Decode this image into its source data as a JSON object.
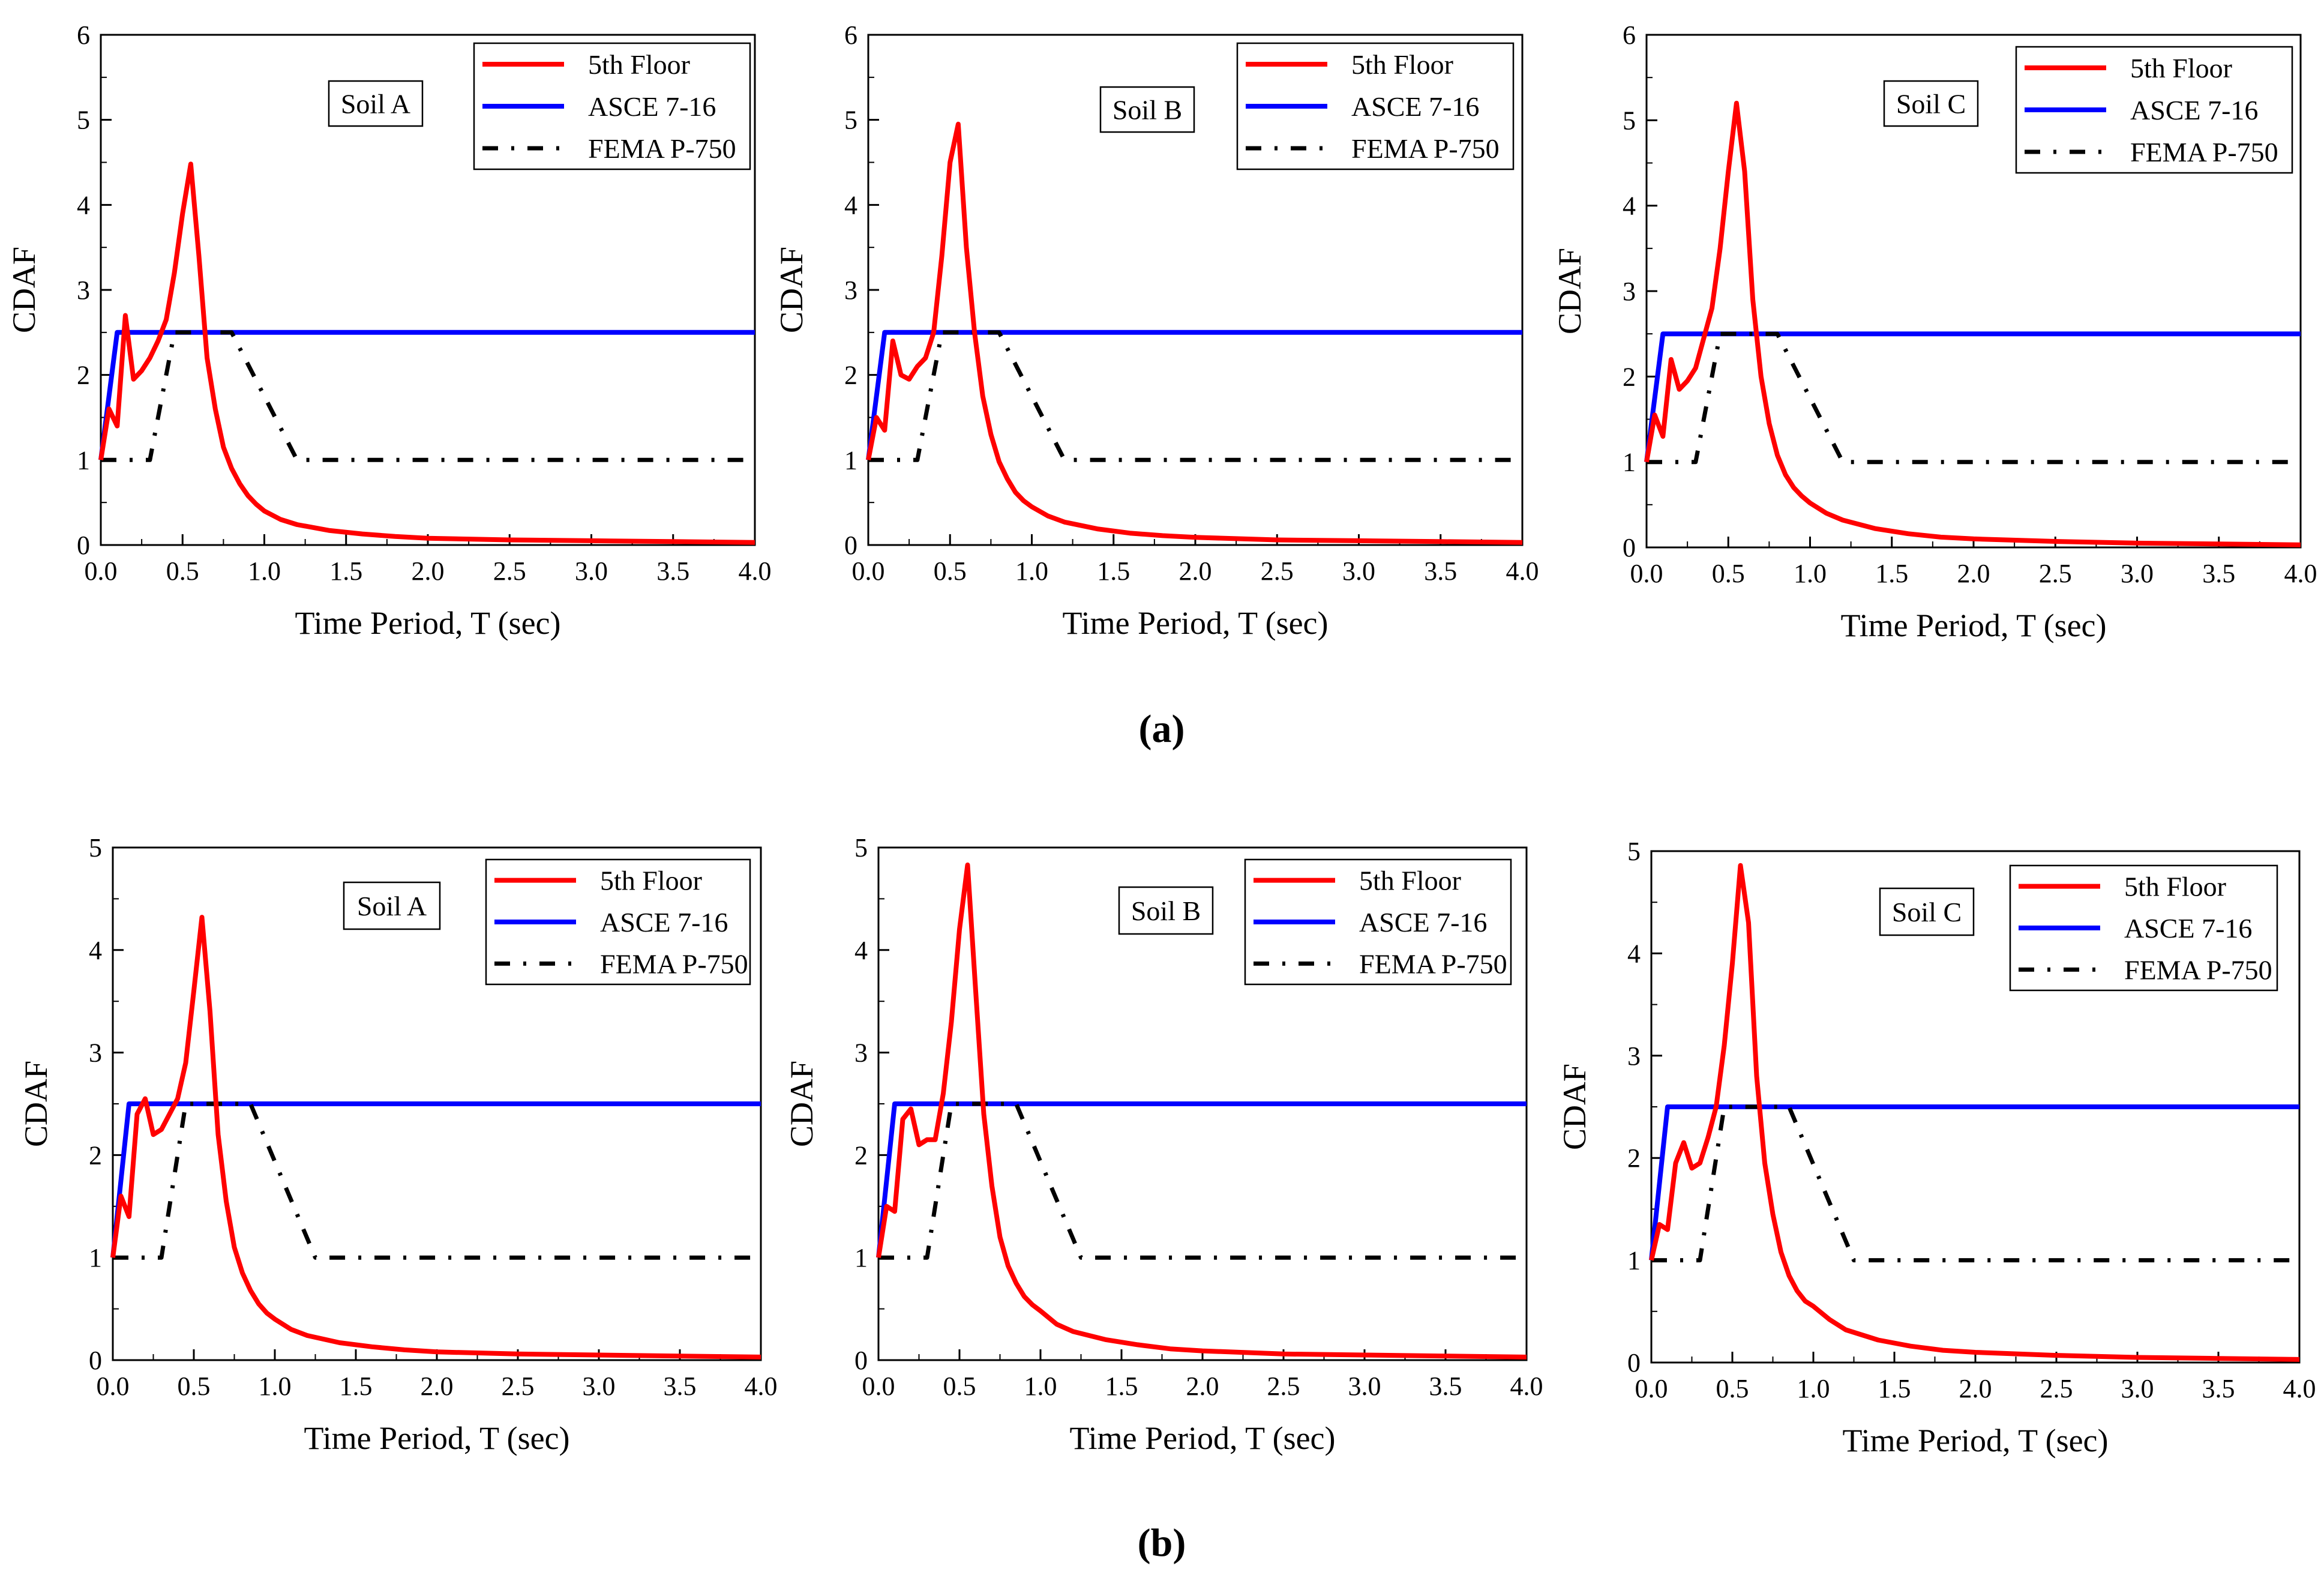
{
  "figure": {
    "panel_labels": [
      "(a)",
      "(b)"
    ],
    "legend": {
      "floor": "5th Floor",
      "asce": "ASCE 7-16",
      "fema": "FEMA P-750"
    },
    "colors": {
      "floor": "#ff0000",
      "asce": "#0000ff",
      "fema": "#000000"
    }
  },
  "chart_data": [
    {
      "type": "line",
      "row": "(a)",
      "annotation": "Soil A",
      "xlabel": "Time Period, T (sec)",
      "ylabel": "CDAF",
      "xlim": [
        0,
        4
      ],
      "ylim": [
        0,
        6
      ],
      "xticks": [
        "0.0",
        "0.5",
        "1.0",
        "1.5",
        "2.0",
        "2.5",
        "3.0",
        "3.5",
        "4.0"
      ],
      "yticks": [
        "0",
        "1",
        "2",
        "3",
        "4",
        "5",
        "6"
      ],
      "series": [
        {
          "name": "5th Floor",
          "x": [
            0,
            0.05,
            0.1,
            0.15,
            0.2,
            0.25,
            0.3,
            0.35,
            0.4,
            0.45,
            0.5,
            0.55,
            0.6,
            0.65,
            0.7,
            0.75,
            0.8,
            0.85,
            0.9,
            0.95,
            1.0,
            1.1,
            1.2,
            1.4,
            1.6,
            1.8,
            2.0,
            2.5,
            3.0,
            3.5,
            4.0
          ],
          "y": [
            1.0,
            1.6,
            1.4,
            2.7,
            1.95,
            2.05,
            2.2,
            2.4,
            2.65,
            3.2,
            3.9,
            4.48,
            3.4,
            2.2,
            1.6,
            1.15,
            0.9,
            0.72,
            0.58,
            0.48,
            0.4,
            0.3,
            0.24,
            0.17,
            0.13,
            0.1,
            0.08,
            0.06,
            0.05,
            0.04,
            0.03
          ]
        },
        {
          "name": "ASCE 7-16",
          "x": [
            0,
            0.1,
            4.0
          ],
          "y": [
            1,
            2.5,
            2.5
          ]
        },
        {
          "name": "FEMA P-750",
          "x": [
            0,
            0.3,
            0.45,
            0.8,
            1.2,
            4.0
          ],
          "y": [
            1,
            1,
            2.5,
            2.5,
            1,
            1
          ]
        }
      ]
    },
    {
      "type": "line",
      "row": "(a)",
      "annotation": "Soil B",
      "xlabel": "Time Period, T (sec)",
      "ylabel": "CDAF",
      "xlim": [
        0,
        4
      ],
      "ylim": [
        0,
        6
      ],
      "xticks": [
        "0.0",
        "0.5",
        "1.0",
        "1.5",
        "2.0",
        "2.5",
        "3.0",
        "3.5",
        "4.0"
      ],
      "yticks": [
        "0",
        "1",
        "2",
        "3",
        "4",
        "5",
        "6"
      ],
      "series": [
        {
          "name": "5th Floor",
          "x": [
            0,
            0.05,
            0.1,
            0.15,
            0.2,
            0.25,
            0.3,
            0.35,
            0.4,
            0.45,
            0.5,
            0.55,
            0.6,
            0.65,
            0.7,
            0.75,
            0.8,
            0.85,
            0.9,
            0.95,
            1.0,
            1.1,
            1.2,
            1.4,
            1.6,
            1.8,
            2.0,
            2.5,
            3.0,
            3.5,
            4.0
          ],
          "y": [
            1.0,
            1.5,
            1.35,
            2.4,
            2.0,
            1.95,
            2.1,
            2.2,
            2.5,
            3.4,
            4.5,
            4.95,
            3.5,
            2.5,
            1.75,
            1.3,
            0.98,
            0.78,
            0.62,
            0.52,
            0.45,
            0.34,
            0.27,
            0.19,
            0.14,
            0.11,
            0.09,
            0.06,
            0.05,
            0.04,
            0.03
          ]
        },
        {
          "name": "ASCE 7-16",
          "x": [
            0,
            0.1,
            4.0
          ],
          "y": [
            1,
            2.5,
            2.5
          ]
        },
        {
          "name": "FEMA P-750",
          "x": [
            0,
            0.3,
            0.45,
            0.8,
            1.2,
            4.0
          ],
          "y": [
            1,
            1,
            2.5,
            2.5,
            1,
            1
          ]
        }
      ]
    },
    {
      "type": "line",
      "row": "(a)",
      "annotation": "Soil C",
      "xlabel": "Time Period, T (sec)",
      "ylabel": "CDAF",
      "xlim": [
        0,
        4
      ],
      "ylim": [
        0,
        6
      ],
      "xticks": [
        "0.0",
        "0.5",
        "1.0",
        "1.5",
        "2.0",
        "2.5",
        "3.0",
        "3.5",
        "4.0"
      ],
      "yticks": [
        "0",
        "1",
        "2",
        "3",
        "4",
        "5",
        "6"
      ],
      "series": [
        {
          "name": "5th Floor",
          "x": [
            0,
            0.05,
            0.1,
            0.15,
            0.2,
            0.25,
            0.3,
            0.35,
            0.4,
            0.45,
            0.5,
            0.55,
            0.6,
            0.65,
            0.7,
            0.75,
            0.8,
            0.85,
            0.9,
            0.95,
            1.0,
            1.1,
            1.2,
            1.4,
            1.6,
            1.8,
            2.0,
            2.5,
            3.0,
            3.5,
            4.0
          ],
          "y": [
            1.0,
            1.55,
            1.3,
            2.2,
            1.85,
            1.95,
            2.1,
            2.45,
            2.8,
            3.5,
            4.4,
            5.2,
            4.4,
            2.9,
            2.0,
            1.45,
            1.08,
            0.85,
            0.7,
            0.6,
            0.52,
            0.4,
            0.32,
            0.22,
            0.16,
            0.12,
            0.1,
            0.07,
            0.05,
            0.04,
            0.03
          ]
        },
        {
          "name": "ASCE 7-16",
          "x": [
            0,
            0.1,
            4.0
          ],
          "y": [
            1,
            2.5,
            2.5
          ]
        },
        {
          "name": "FEMA P-750",
          "x": [
            0,
            0.3,
            0.45,
            0.8,
            1.2,
            4.0
          ],
          "y": [
            1,
            1,
            2.5,
            2.5,
            1,
            1
          ]
        }
      ]
    },
    {
      "type": "line",
      "row": "(b)",
      "annotation": "Soil A",
      "xlabel": "Time Period, T (sec)",
      "ylabel": "CDAF",
      "xlim": [
        0,
        4
      ],
      "ylim": [
        0,
        5
      ],
      "xticks": [
        "0.0",
        "0.5",
        "1.0",
        "1.5",
        "2.0",
        "2.5",
        "3.0",
        "3.5",
        "4.0"
      ],
      "yticks": [
        "0",
        "1",
        "2",
        "3",
        "4",
        "5"
      ],
      "series": [
        {
          "name": "5th Floor",
          "x": [
            0,
            0.05,
            0.1,
            0.15,
            0.2,
            0.25,
            0.3,
            0.35,
            0.4,
            0.45,
            0.5,
            0.55,
            0.6,
            0.65,
            0.7,
            0.75,
            0.8,
            0.85,
            0.9,
            0.95,
            1.0,
            1.1,
            1.2,
            1.4,
            1.6,
            1.8,
            2.0,
            2.5,
            3.0,
            3.5,
            4.0
          ],
          "y": [
            1.0,
            1.6,
            1.4,
            2.4,
            2.55,
            2.2,
            2.25,
            2.4,
            2.55,
            2.9,
            3.6,
            4.32,
            3.4,
            2.2,
            1.55,
            1.1,
            0.85,
            0.68,
            0.55,
            0.46,
            0.4,
            0.3,
            0.24,
            0.17,
            0.13,
            0.1,
            0.08,
            0.06,
            0.05,
            0.04,
            0.03
          ]
        },
        {
          "name": "ASCE 7-16",
          "x": [
            0,
            0.1,
            4.0
          ],
          "y": [
            1,
            2.5,
            2.5
          ]
        },
        {
          "name": "FEMA P-750",
          "x": [
            0,
            0.3,
            0.45,
            0.85,
            1.25,
            4.0
          ],
          "y": [
            1,
            1,
            2.5,
            2.5,
            1,
            1
          ]
        }
      ]
    },
    {
      "type": "line",
      "row": "(b)",
      "annotation": "Soil B",
      "xlabel": "Time Period, T (sec)",
      "ylabel": "CDAF",
      "xlim": [
        0,
        4
      ],
      "ylim": [
        0,
        5
      ],
      "xticks": [
        "0.0",
        "0.5",
        "1.0",
        "1.5",
        "2.0",
        "2.5",
        "3.0",
        "3.5",
        "4.0"
      ],
      "yticks": [
        "0",
        "1",
        "2",
        "3",
        "4",
        "5"
      ],
      "series": [
        {
          "name": "5th Floor",
          "x": [
            0,
            0.05,
            0.1,
            0.15,
            0.2,
            0.25,
            0.3,
            0.35,
            0.4,
            0.45,
            0.5,
            0.55,
            0.6,
            0.65,
            0.7,
            0.75,
            0.8,
            0.85,
            0.9,
            0.95,
            1.0,
            1.1,
            1.2,
            1.4,
            1.6,
            1.8,
            2.0,
            2.5,
            3.0,
            3.5,
            4.0
          ],
          "y": [
            1.0,
            1.5,
            1.45,
            2.35,
            2.45,
            2.1,
            2.15,
            2.15,
            2.6,
            3.3,
            4.2,
            4.83,
            3.6,
            2.4,
            1.7,
            1.2,
            0.92,
            0.75,
            0.62,
            0.54,
            0.48,
            0.35,
            0.28,
            0.2,
            0.15,
            0.11,
            0.09,
            0.06,
            0.05,
            0.04,
            0.03
          ]
        },
        {
          "name": "ASCE 7-16",
          "x": [
            0,
            0.1,
            4.0
          ],
          "y": [
            1,
            2.5,
            2.5
          ]
        },
        {
          "name": "FEMA P-750",
          "x": [
            0,
            0.3,
            0.45,
            0.85,
            1.25,
            4.0
          ],
          "y": [
            1,
            1,
            2.5,
            2.5,
            1,
            1
          ]
        }
      ]
    },
    {
      "type": "line",
      "row": "(b)",
      "annotation": "Soil C",
      "xlabel": "Time Period, T (sec)",
      "ylabel": "CDAF",
      "xlim": [
        0,
        4
      ],
      "ylim": [
        0,
        5
      ],
      "xticks": [
        "0.0",
        "0.5",
        "1.0",
        "1.5",
        "2.0",
        "2.5",
        "3.0",
        "3.5",
        "4.0"
      ],
      "yticks": [
        "0",
        "1",
        "2",
        "3",
        "4",
        "5"
      ],
      "series": [
        {
          "name": "5th Floor",
          "x": [
            0,
            0.05,
            0.1,
            0.15,
            0.2,
            0.25,
            0.3,
            0.35,
            0.4,
            0.45,
            0.5,
            0.55,
            0.6,
            0.65,
            0.7,
            0.75,
            0.8,
            0.85,
            0.9,
            0.95,
            1.0,
            1.1,
            1.2,
            1.4,
            1.6,
            1.8,
            2.0,
            2.5,
            3.0,
            3.5,
            4.0
          ],
          "y": [
            1.0,
            1.35,
            1.3,
            1.95,
            2.15,
            1.9,
            1.95,
            2.2,
            2.5,
            3.1,
            3.9,
            4.86,
            4.3,
            2.8,
            1.95,
            1.45,
            1.08,
            0.85,
            0.7,
            0.6,
            0.55,
            0.42,
            0.32,
            0.22,
            0.16,
            0.12,
            0.1,
            0.07,
            0.05,
            0.04,
            0.03
          ]
        },
        {
          "name": "ASCE 7-16",
          "x": [
            0,
            0.1,
            4.0
          ],
          "y": [
            1,
            2.5,
            2.5
          ]
        },
        {
          "name": "FEMA P-750",
          "x": [
            0,
            0.3,
            0.45,
            0.85,
            1.25,
            4.0
          ],
          "y": [
            1,
            1,
            2.5,
            2.5,
            1,
            1
          ]
        }
      ]
    }
  ]
}
